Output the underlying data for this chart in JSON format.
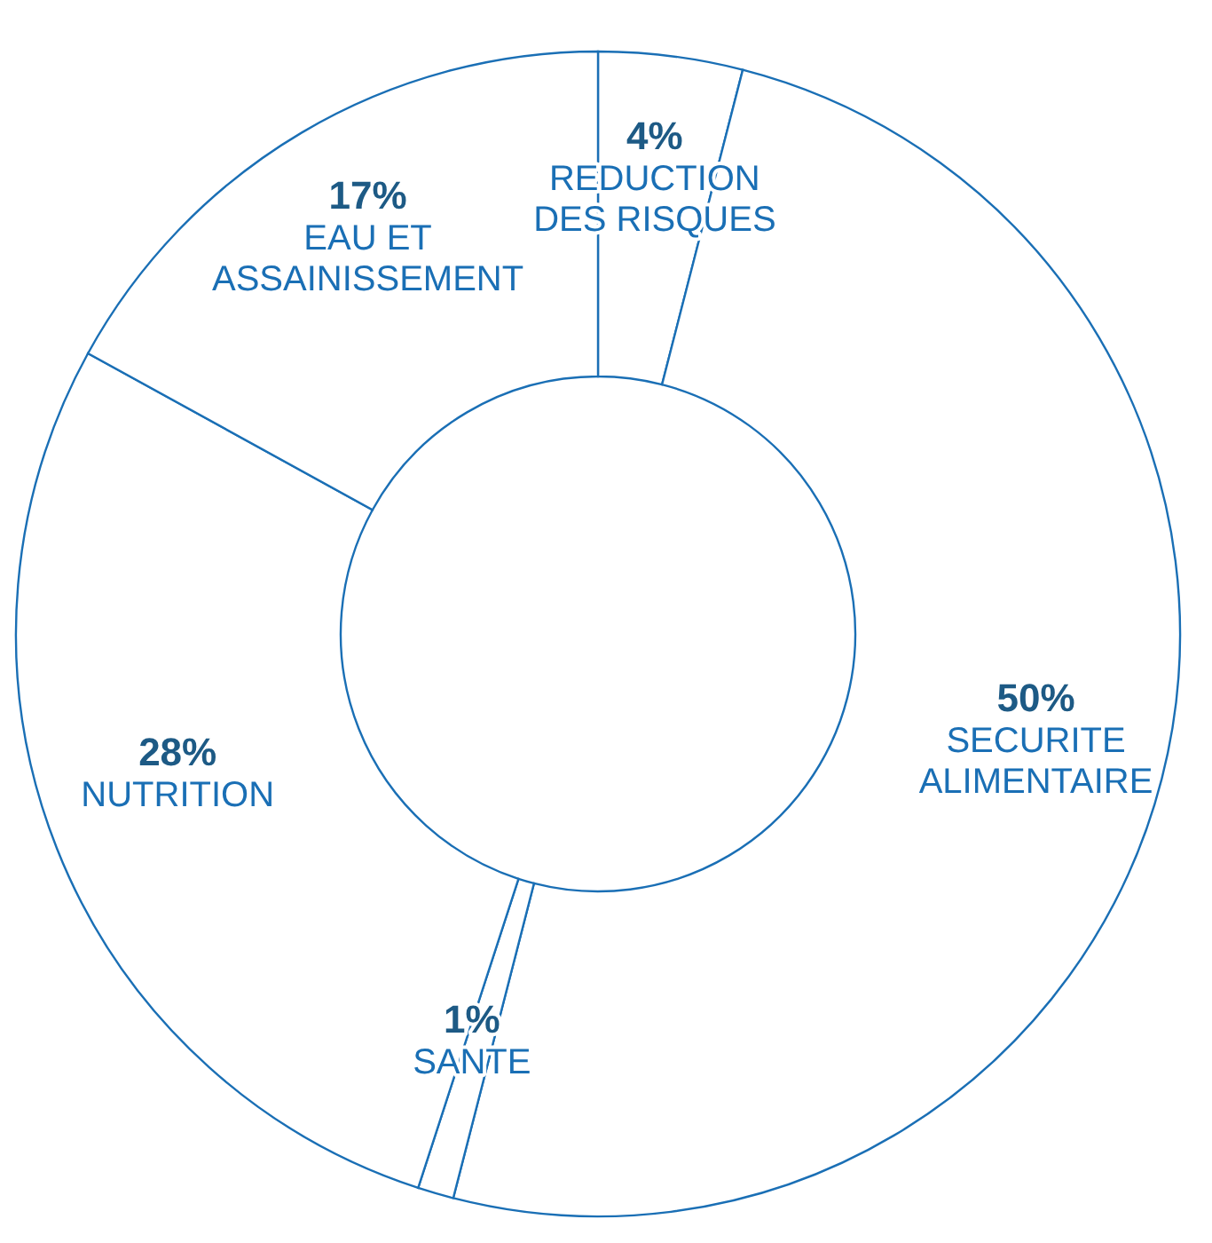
{
  "chart_data": {
    "type": "donut",
    "categories": [
      "REDUCTION DES RISQUES",
      "SECURITE ALIMENTAIRE",
      "SANTE",
      "NUTRITION",
      "EAU ET ASSAINISSEMENT"
    ],
    "values": [
      4,
      50,
      1,
      28,
      17
    ],
    "colors": [
      "#ffffff",
      "#ffffff",
      "#ffffff",
      "#ffffff",
      "#ffffff"
    ],
    "value_labels": [
      "4%",
      "50%",
      "1%",
      "28%",
      "17%"
    ]
  }
}
